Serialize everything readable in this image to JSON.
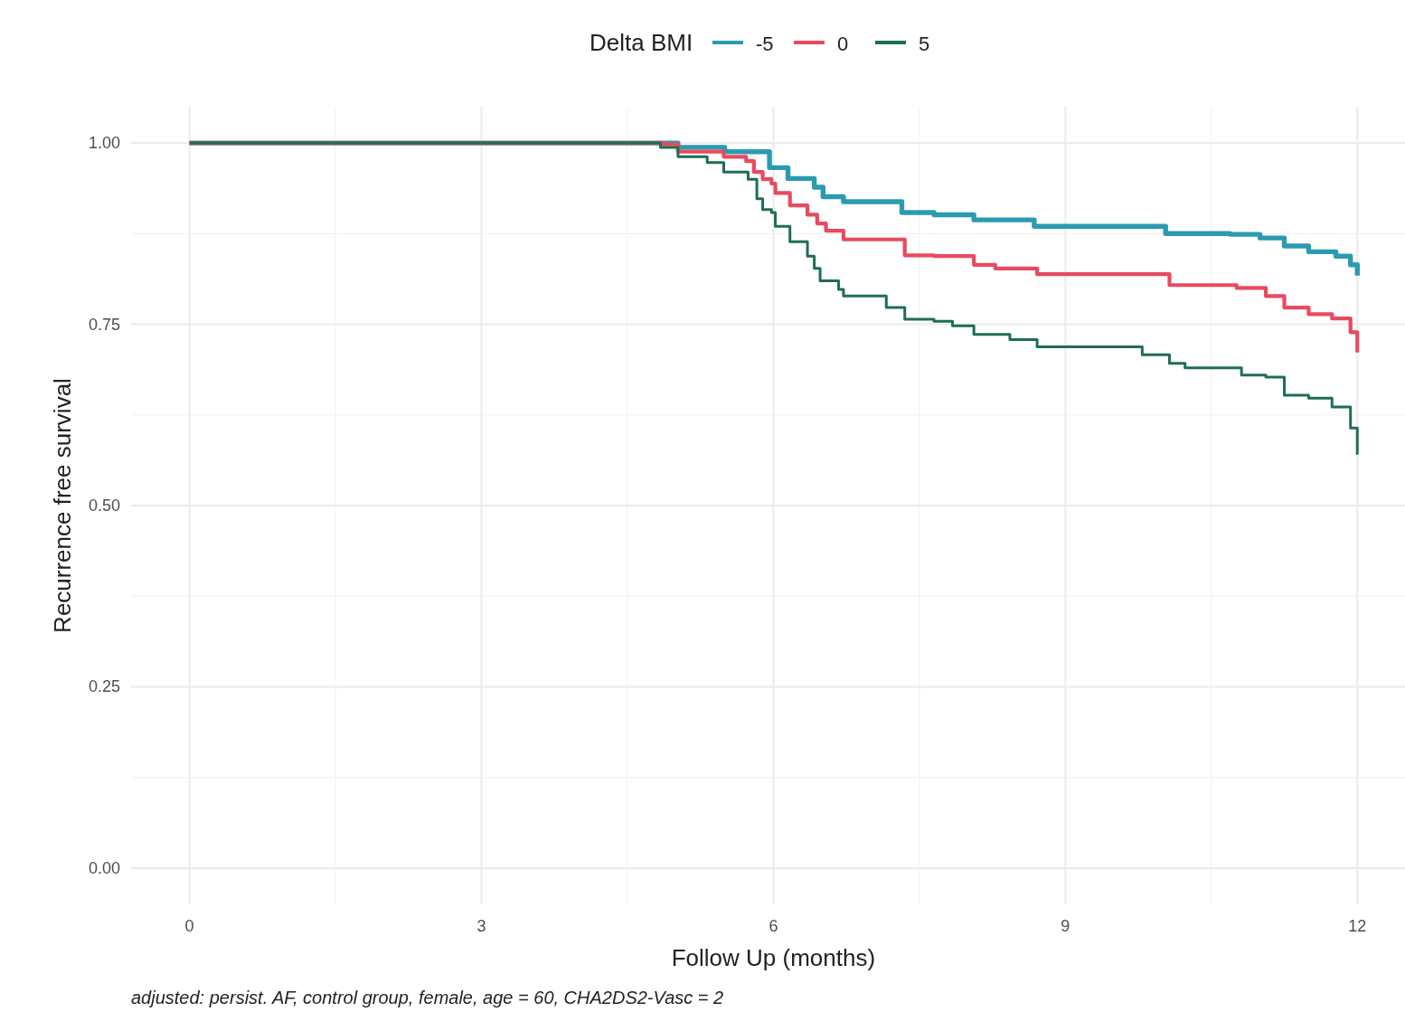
{
  "chart_data": {
    "type": "step",
    "xlabel": "Follow Up (months)",
    "ylabel": "Recurrence free survival",
    "legend_title": "Delta BMI",
    "legend": "top",
    "grid": true,
    "line_style": "solid",
    "xlim": [
      -0.6,
      12.49
    ],
    "ylim": [
      -0.05,
      1.05
    ],
    "xticks": [
      0,
      3,
      6,
      9,
      12
    ],
    "yticks": [
      {
        "value": 0,
        "label": "0.00"
      },
      {
        "value": 0.25,
        "label": "0.25"
      },
      {
        "value": 0.5,
        "label": "0.50"
      },
      {
        "value": 0.75,
        "label": "0.75"
      },
      {
        "value": 1,
        "label": "1.00"
      }
    ],
    "annotations": [
      "adjusted: persist. AF, control group, female, age = 60, CHA2DS2-Vasc = 2"
    ],
    "series": [
      {
        "name": "-5",
        "color": "#2a9bb0",
        "x": [
          0,
          5.02,
          5.5,
          5.96,
          6.15,
          6.42,
          6.51,
          6.72,
          7.32,
          7.65,
          8.06,
          8.68,
          10.03,
          10.69,
          11.0,
          11.25,
          11.5,
          11.78,
          11.93,
          12.0
        ],
        "values": [
          1.0,
          0.994,
          0.988,
          0.966,
          0.951,
          0.939,
          0.926,
          0.919,
          0.904,
          0.901,
          0.894,
          0.885,
          0.875,
          0.874,
          0.869,
          0.858,
          0.85,
          0.844,
          0.832,
          0.817
        ]
      },
      {
        "name": "0",
        "color": "#e84a5f",
        "x": [
          0,
          4.87,
          5.02,
          5.49,
          5.72,
          5.8,
          5.89,
          5.98,
          6.02,
          6.17,
          6.35,
          6.45,
          6.54,
          6.72,
          7.35,
          7.65,
          8.06,
          8.28,
          8.71,
          10.07,
          10.76,
          11.06,
          11.25,
          11.5,
          11.74,
          11.93,
          12.0
        ],
        "values": [
          1.0,
          0.998,
          0.988,
          0.981,
          0.975,
          0.96,
          0.95,
          0.944,
          0.931,
          0.914,
          0.901,
          0.889,
          0.879,
          0.867,
          0.845,
          0.844,
          0.832,
          0.827,
          0.819,
          0.804,
          0.8,
          0.789,
          0.773,
          0.764,
          0.758,
          0.739,
          0.711
        ]
      },
      {
        "name": "5",
        "color": "#1f6e50",
        "x": [
          0,
          4.84,
          5.02,
          5.32,
          5.49,
          5.74,
          5.83,
          5.89,
          5.98,
          6.02,
          6.17,
          6.35,
          6.42,
          6.48,
          6.67,
          6.72,
          7.16,
          7.35,
          7.65,
          7.84,
          8.06,
          8.43,
          8.71,
          9.79,
          10.07,
          10.23,
          10.81,
          11.06,
          11.25,
          11.5,
          11.74,
          11.93,
          12.0
        ],
        "values": [
          1.0,
          0.994,
          0.981,
          0.973,
          0.96,
          0.95,
          0.923,
          0.908,
          0.904,
          0.885,
          0.864,
          0.844,
          0.827,
          0.81,
          0.798,
          0.789,
          0.773,
          0.757,
          0.754,
          0.748,
          0.736,
          0.729,
          0.719,
          0.708,
          0.696,
          0.69,
          0.68,
          0.677,
          0.652,
          0.648,
          0.636,
          0.607,
          0.57
        ]
      }
    ]
  }
}
